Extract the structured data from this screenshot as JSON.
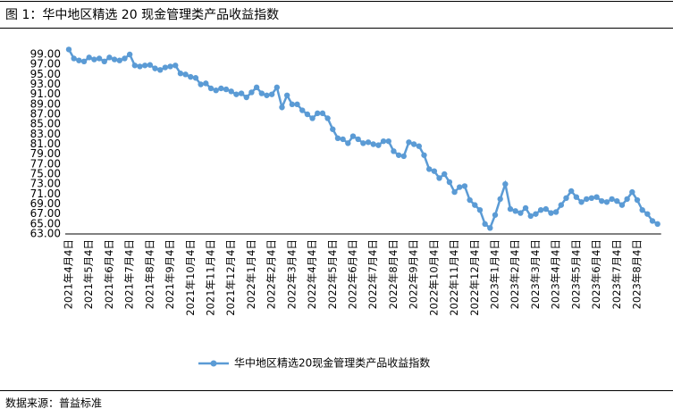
{
  "chart_data": {
    "type": "line",
    "title": "图 1：华中地区精选 20 现金管理类产品收益指数",
    "source": "数据来源：普益标准",
    "categories": [
      "2021年4月4日",
      null,
      null,
      null,
      "2021年5月4日",
      null,
      null,
      null,
      "2021年6月4日",
      null,
      null,
      null,
      "2021年7月4日",
      null,
      null,
      null,
      "2021年8月4日",
      null,
      null,
      null,
      "2021年9月4日",
      null,
      null,
      null,
      "2021年10月4日",
      null,
      null,
      null,
      "2021年11月4日",
      null,
      null,
      null,
      "2021年12月4日",
      null,
      null,
      null,
      "2022年1月4日",
      null,
      null,
      null,
      "2022年2月4日",
      null,
      null,
      null,
      "2022年3月4日",
      null,
      null,
      null,
      "2022年4月4日",
      null,
      null,
      null,
      "2022年5月4日",
      null,
      null,
      null,
      "2022年6月4日",
      null,
      null,
      null,
      "2022年7月4日",
      null,
      null,
      null,
      "2022年8月4日",
      null,
      null,
      null,
      "2022年9月4日",
      null,
      null,
      null,
      "2022年10月4日",
      null,
      null,
      null,
      "2022年11月4日",
      null,
      null,
      null,
      "2022年12月4日",
      null,
      null,
      null,
      "2023年1月4日",
      null,
      null,
      null,
      "2023年2月4日",
      null,
      null,
      null,
      "2023年3月4日",
      null,
      null,
      null,
      "2023年4月4日",
      null,
      null,
      null,
      "2023年5月4日",
      null,
      null,
      null,
      "2023年6月4日",
      null,
      null,
      null,
      "2023年7月4日",
      null,
      null,
      null,
      "2023年8月4日",
      null,
      null,
      null,
      null
    ],
    "series": [
      {
        "name": "华中地区精选20现金管理类产品收益指数",
        "color": "#5b9bd5",
        "values": [
          100.0,
          98.2,
          97.8,
          97.6,
          98.4,
          98.0,
          98.2,
          97.6,
          98.4,
          98.0,
          97.8,
          98.2,
          99.0,
          96.8,
          96.6,
          96.8,
          96.9,
          96.2,
          95.9,
          96.4,
          96.6,
          96.8,
          95.2,
          95.0,
          94.5,
          94.3,
          93.0,
          93.2,
          92.2,
          91.8,
          92.2,
          92.0,
          91.6,
          91.0,
          91.2,
          90.4,
          91.4,
          92.4,
          91.2,
          90.8,
          91.0,
          92.4,
          88.4,
          90.8,
          89.0,
          89.0,
          87.8,
          87.0,
          86.2,
          87.2,
          87.2,
          86.2,
          84.0,
          82.2,
          82.0,
          81.2,
          82.6,
          82.0,
          81.2,
          81.4,
          81.0,
          80.8,
          81.6,
          81.6,
          79.6,
          78.8,
          78.6,
          81.4,
          81.0,
          80.6,
          78.8,
          76.0,
          75.6,
          74.2,
          75.0,
          73.4,
          71.4,
          72.4,
          72.6,
          69.8,
          68.8,
          67.8,
          65.0,
          64.2,
          66.8,
          70.0,
          73.0,
          68.0,
          67.6,
          67.2,
          68.2,
          66.6,
          67.0,
          67.8,
          68.0,
          67.2,
          67.4,
          68.8,
          70.2,
          71.6,
          70.4,
          69.4,
          70.0,
          70.2,
          70.4,
          69.6,
          69.4,
          70.0,
          69.6,
          68.8,
          70.0,
          71.4,
          69.8,
          67.8,
          67.0,
          65.6,
          65.0
        ]
      }
    ],
    "ylim": [
      63,
      100
    ],
    "yticks": [
      {
        "value": 63,
        "label": "63.00"
      },
      {
        "value": 65,
        "label": "65.00"
      },
      {
        "value": 67,
        "label": "67.00"
      },
      {
        "value": 69,
        "label": "69.00"
      },
      {
        "value": 71,
        "label": "71.00"
      },
      {
        "value": 73,
        "label": "73.00"
      },
      {
        "value": 75,
        "label": "75.00"
      },
      {
        "value": 77,
        "label": "77.00"
      },
      {
        "value": 79,
        "label": "79.00"
      },
      {
        "value": 81,
        "label": "81.00"
      },
      {
        "value": 83,
        "label": "83.00"
      },
      {
        "value": 85,
        "label": "85.00"
      },
      {
        "value": 87,
        "label": "87.00"
      },
      {
        "value": 89,
        "label": "89.00"
      },
      {
        "value": 91,
        "label": "91.00"
      },
      {
        "value": 93,
        "label": "93.00"
      },
      {
        "value": 95,
        "label": "95.00"
      },
      {
        "value": 97,
        "label": "97.00"
      },
      {
        "value": 99,
        "label": "99.00"
      }
    ],
    "grid": false,
    "legend": "bottom"
  }
}
